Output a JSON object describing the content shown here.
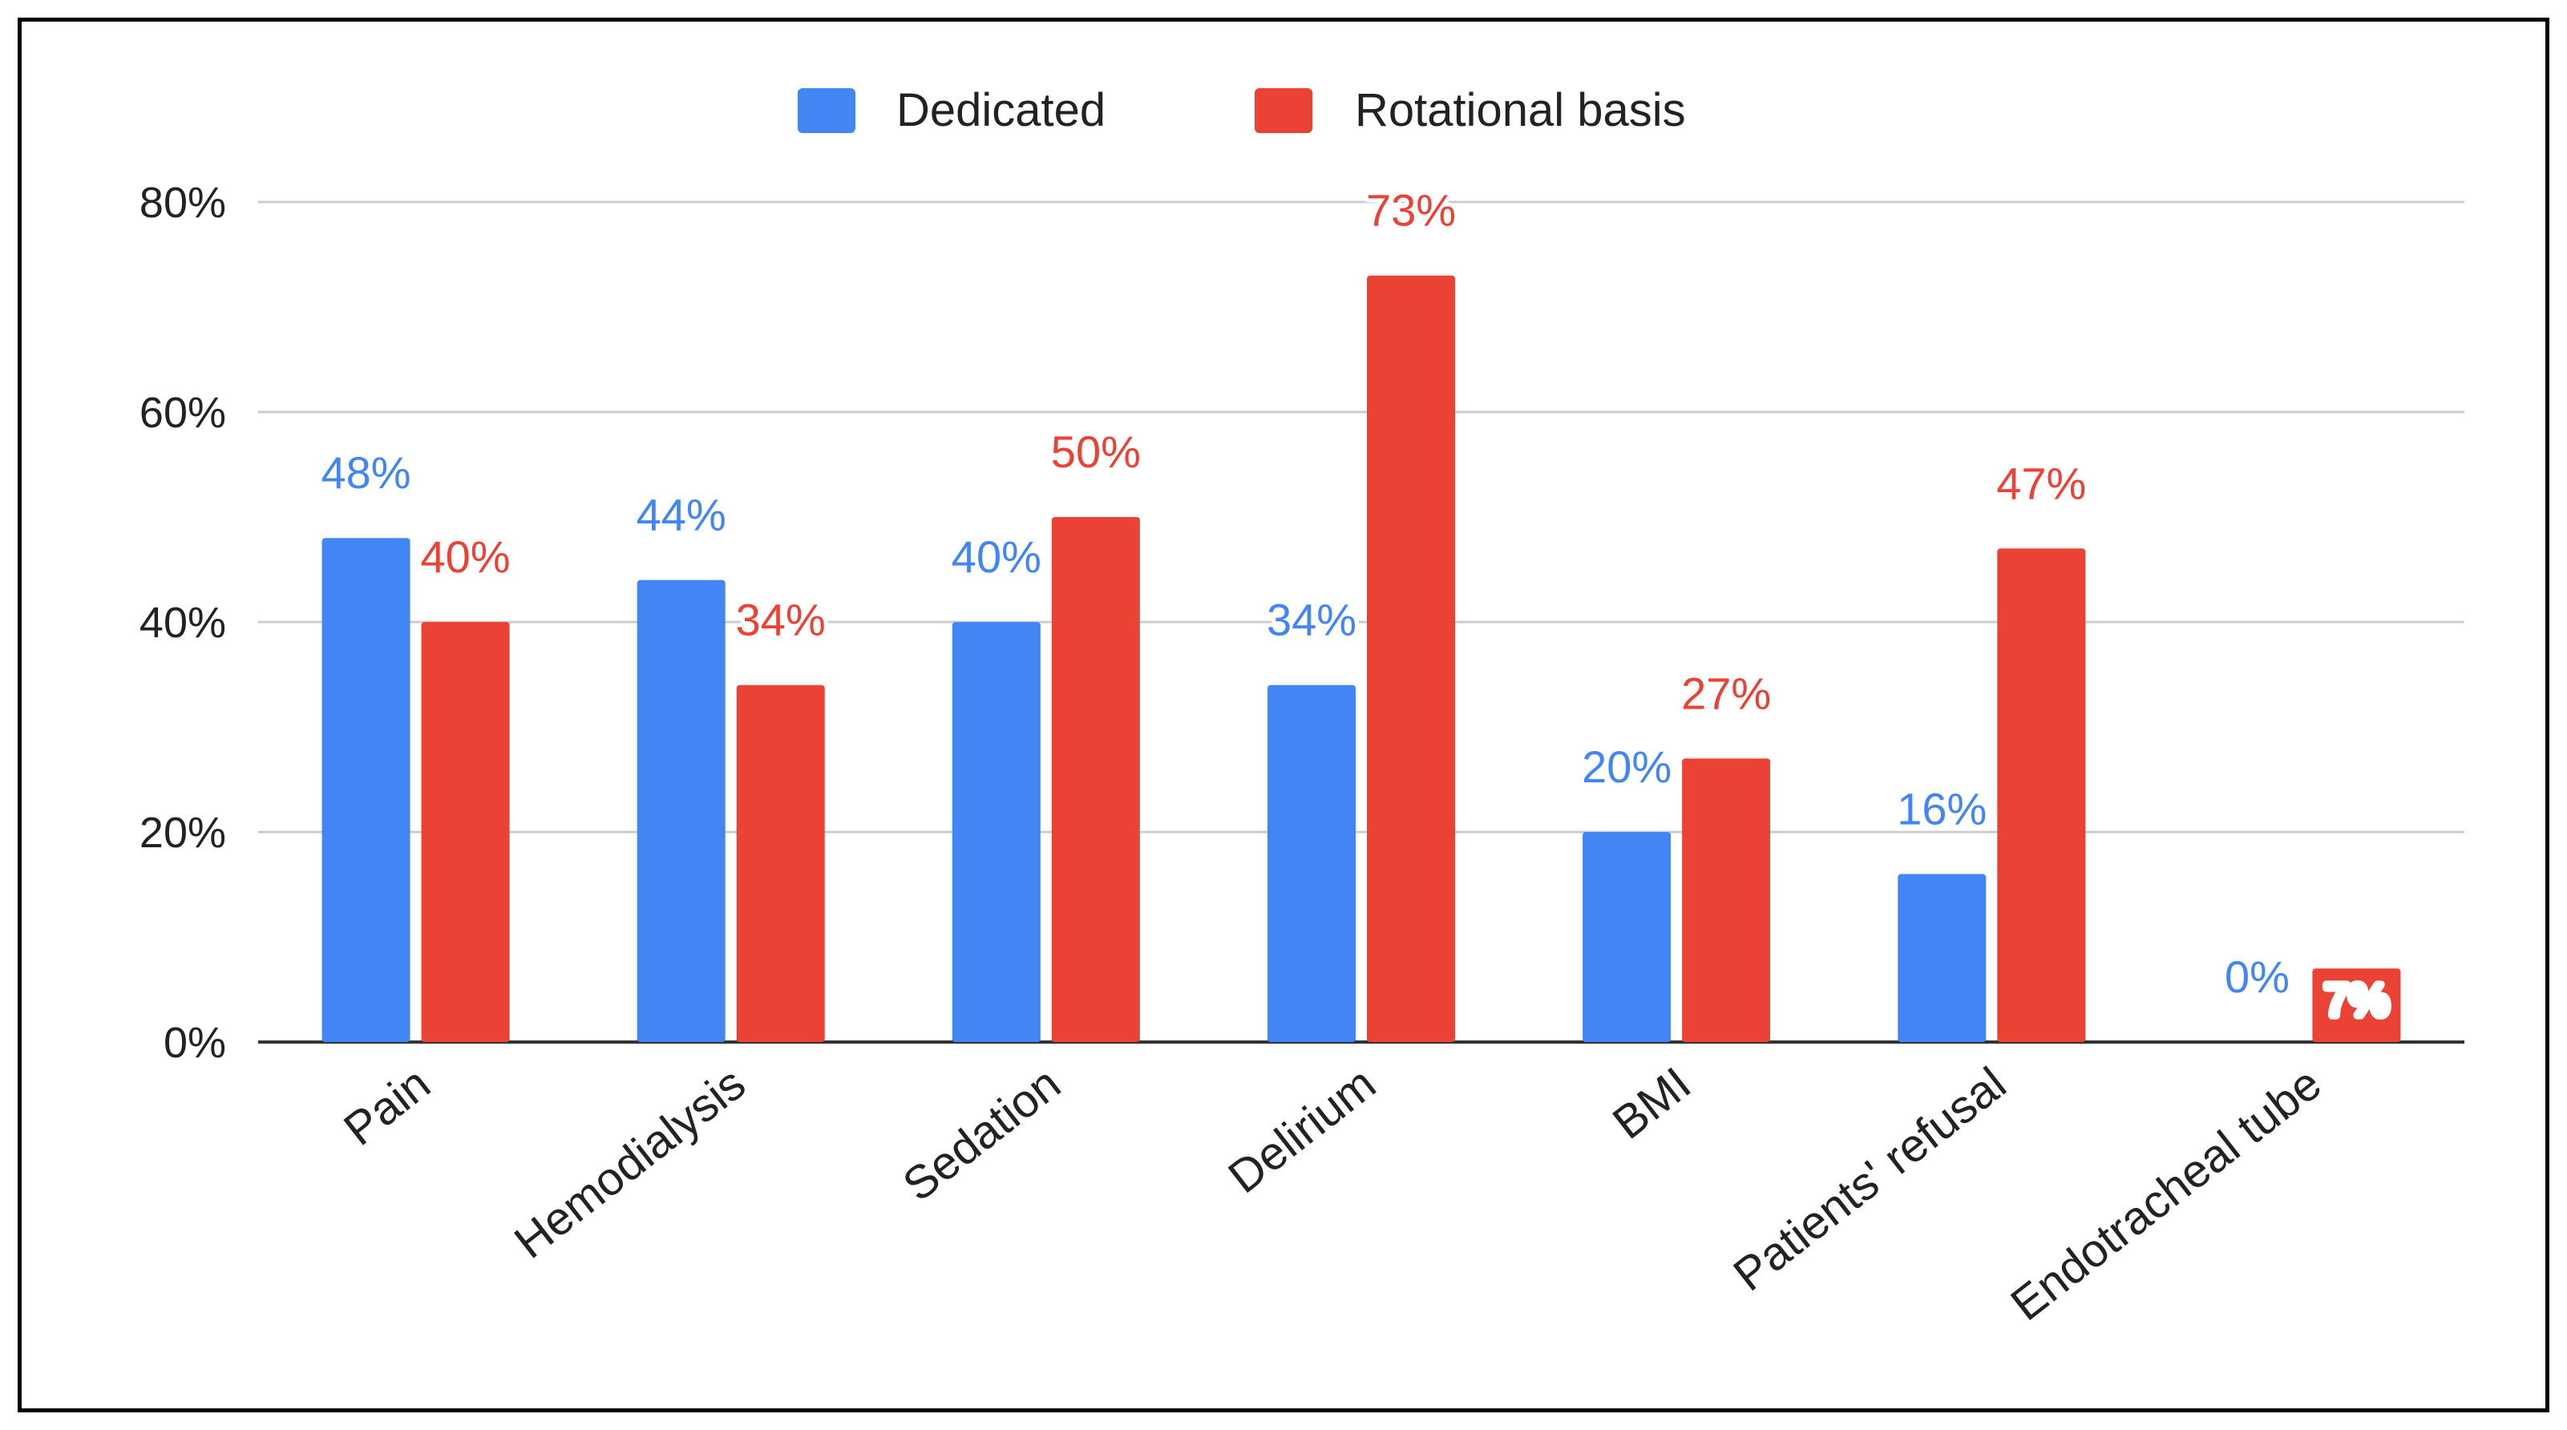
{
  "chart_data": {
    "type": "bar",
    "title": "",
    "xlabel": "",
    "ylabel": "",
    "ylim": [
      0,
      80
    ],
    "yticks": [
      "0%",
      "20%",
      "40%",
      "60%",
      "80%"
    ],
    "grid": true,
    "legend_position": "top",
    "categories": [
      "Pain",
      "Hemodialysis",
      "Sedation",
      "Delirium",
      "BMI",
      "Patients' refusal",
      "Endotracheal tube"
    ],
    "series": [
      {
        "name": "Dedicated",
        "color": "#4285F4",
        "values": [
          48,
          44,
          40,
          34,
          20,
          16,
          0
        ],
        "labels": [
          "48%",
          "44%",
          "40%",
          "34%",
          "20%",
          "16%",
          "0%"
        ]
      },
      {
        "name": "Rotational basis",
        "color": "#EA4335",
        "values": [
          40,
          34,
          50,
          73,
          27,
          47,
          7
        ],
        "labels": [
          "40%",
          "34%",
          "50%",
          "73%",
          "27%",
          "47%",
          "7%"
        ]
      }
    ]
  }
}
